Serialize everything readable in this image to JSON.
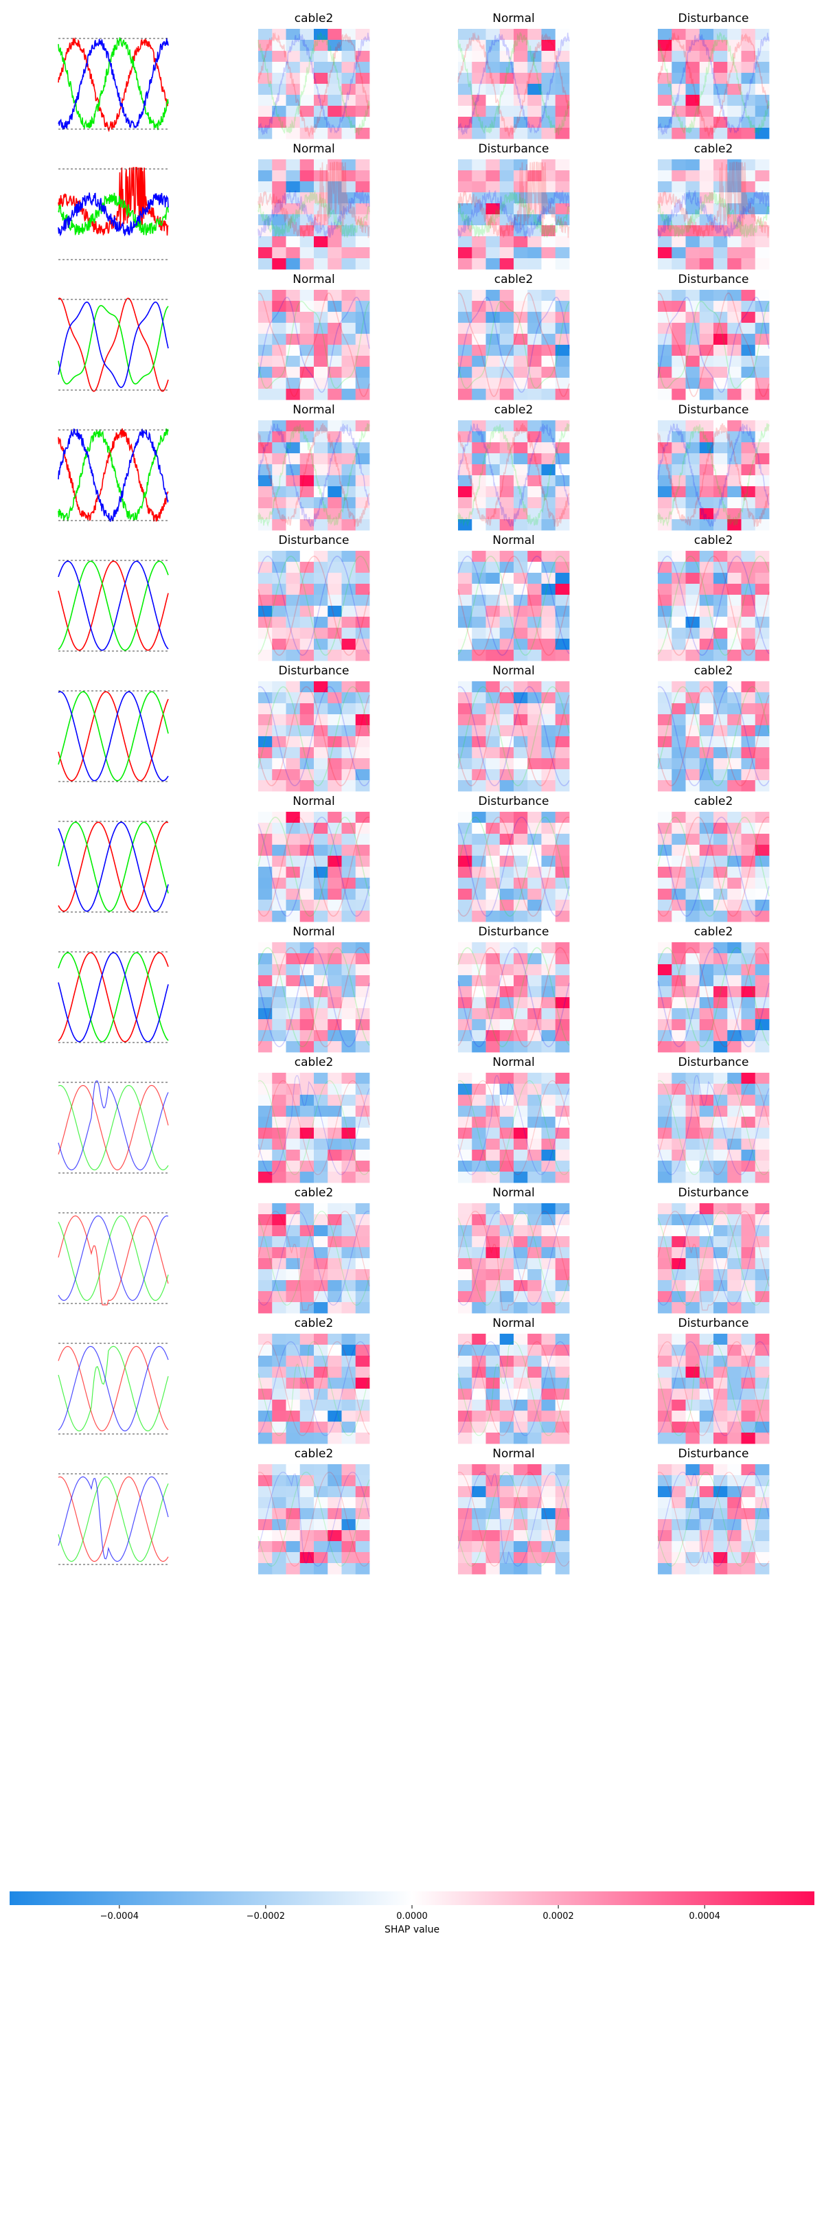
{
  "chart_data": {
    "type": "heatmap",
    "title": "",
    "colors": {
      "negative": "#1e88e5",
      "zero": "#ffffff",
      "positive": "#ff0d57"
    },
    "colorbar": {
      "label": "SHAP value",
      "range": [
        -0.00055,
        0.00055
      ],
      "ticks": [
        -0.0004,
        -0.0002,
        0.0,
        0.0002,
        0.0004
      ],
      "tick_labels": [
        "−0.0004",
        "−0.0002",
        "0.0000",
        "0.0002",
        "0.0004"
      ]
    },
    "rows": [
      {
        "signal": "noisy",
        "labels": [
          "cable2",
          "Normal",
          "Disturbance"
        ]
      },
      {
        "signal": "spiky",
        "labels": [
          "Normal",
          "Disturbance",
          "cable2"
        ]
      },
      {
        "signal": "distorted",
        "labels": [
          "Normal",
          "cable2",
          "Disturbance"
        ]
      },
      {
        "signal": "noisy",
        "labels": [
          "Normal",
          "cable2",
          "Disturbance"
        ]
      },
      {
        "signal": "clean",
        "labels": [
          "Disturbance",
          "Normal",
          "cable2"
        ]
      },
      {
        "signal": "clean",
        "labels": [
          "Disturbance",
          "Normal",
          "cable2"
        ]
      },
      {
        "signal": "clean",
        "labels": [
          "Normal",
          "Disturbance",
          "cable2"
        ]
      },
      {
        "signal": "clean",
        "labels": [
          "Normal",
          "Disturbance",
          "cable2"
        ]
      },
      {
        "signal": "transient",
        "labels": [
          "cable2",
          "Normal",
          "Disturbance"
        ]
      },
      {
        "signal": "transient",
        "labels": [
          "cable2",
          "Normal",
          "Disturbance"
        ]
      },
      {
        "signal": "transient",
        "labels": [
          "cable2",
          "Normal",
          "Disturbance"
        ]
      },
      {
        "signal": "transient",
        "labels": [
          "cable2",
          "Normal",
          "Disturbance"
        ]
      }
    ]
  }
}
